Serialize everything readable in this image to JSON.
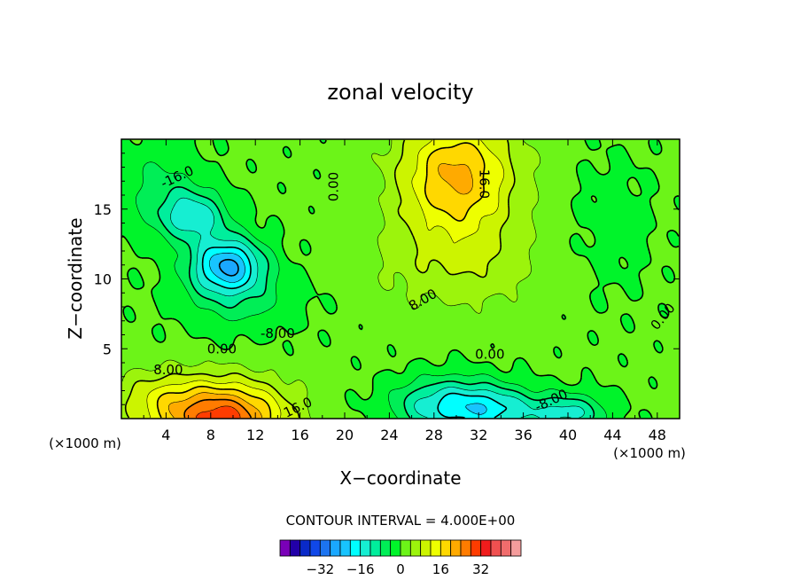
{
  "chart_data": {
    "type": "heatmap",
    "subtype": "filled-contour",
    "title": "zonal velocity",
    "xlabel": "X−coordinate",
    "ylabel": "Z−coordinate",
    "x_units_left": "(×1000 m)",
    "x_units_right": "(×1000 m)",
    "xlim": [
      0,
      50
    ],
    "ylim": [
      0,
      20
    ],
    "x_ticks": [
      4,
      8,
      12,
      16,
      20,
      24,
      28,
      32,
      36,
      40,
      44,
      48
    ],
    "y_ticks": [
      5,
      10,
      15
    ],
    "contour_interval_text": "CONTOUR INTERVAL = 4.000E+00",
    "contour_interval": 4,
    "contour_labels": [
      {
        "text": "-16.0",
        "x": 5,
        "z": 17.3,
        "angle": -25
      },
      {
        "text": "0.00",
        "x": 19,
        "z": 16.6,
        "angle": -90
      },
      {
        "text": "16.0",
        "x": 32.5,
        "z": 16.8,
        "angle": 90
      },
      {
        "text": "-8.00",
        "x": 14,
        "z": 6.1,
        "angle": 0
      },
      {
        "text": "0.00",
        "x": 9,
        "z": 5.0,
        "angle": 0
      },
      {
        "text": "8.00",
        "x": 4.2,
        "z": 3.5,
        "angle": 0
      },
      {
        "text": "16.0",
        "x": 15.8,
        "z": 0.8,
        "angle": -25
      },
      {
        "text": "8.00",
        "x": 27,
        "z": 8.5,
        "angle": -30
      },
      {
        "text": "0.00",
        "x": 33,
        "z": 4.6,
        "angle": 0
      },
      {
        "text": "-8.00",
        "x": 38.5,
        "z": 1.3,
        "angle": -25
      },
      {
        "text": "0.00",
        "x": 48.5,
        "z": 7.3,
        "angle": -50
      }
    ],
    "colorbar": {
      "colors": [
        "#7a00b8",
        "#2200a8",
        "#0a2ac8",
        "#1048e8",
        "#1c74f0",
        "#1aa8ff",
        "#18c4ff",
        "#00ffff",
        "#16eed2",
        "#00ee9c",
        "#00ee56",
        "#00f42a",
        "#6cf418",
        "#9cf40c",
        "#ccf400",
        "#eeff00",
        "#ffd800",
        "#ffaa00",
        "#ff7c00",
        "#ff3c00",
        "#f01c1c",
        "#f05050",
        "#f06c6c",
        "#f49c9c"
      ],
      "tick_values": [
        -32,
        -16,
        0,
        16,
        32
      ],
      "tick_labels": [
        "−32",
        "−16",
        "0",
        "16",
        "32"
      ],
      "vmin": -48,
      "vmax": 48
    },
    "features": [
      {
        "kind": "min",
        "x": 9.5,
        "z": 11.0,
        "value": -30,
        "description": "strongest negative core"
      },
      {
        "kind": "min",
        "x": 7,
        "z": 14.5,
        "value": -24
      },
      {
        "kind": "max",
        "x": 30,
        "z": 17.5,
        "value": 20,
        "description": "upper positive core"
      },
      {
        "kind": "max",
        "x": 9,
        "z": 0.3,
        "value": 28,
        "description": "near-surface positive core"
      },
      {
        "kind": "min",
        "x": 29.5,
        "z": 1.0,
        "value": -15,
        "description": "surface negative pool"
      },
      {
        "kind": "min",
        "x": 40,
        "z": 0.6,
        "value": -13
      }
    ]
  }
}
